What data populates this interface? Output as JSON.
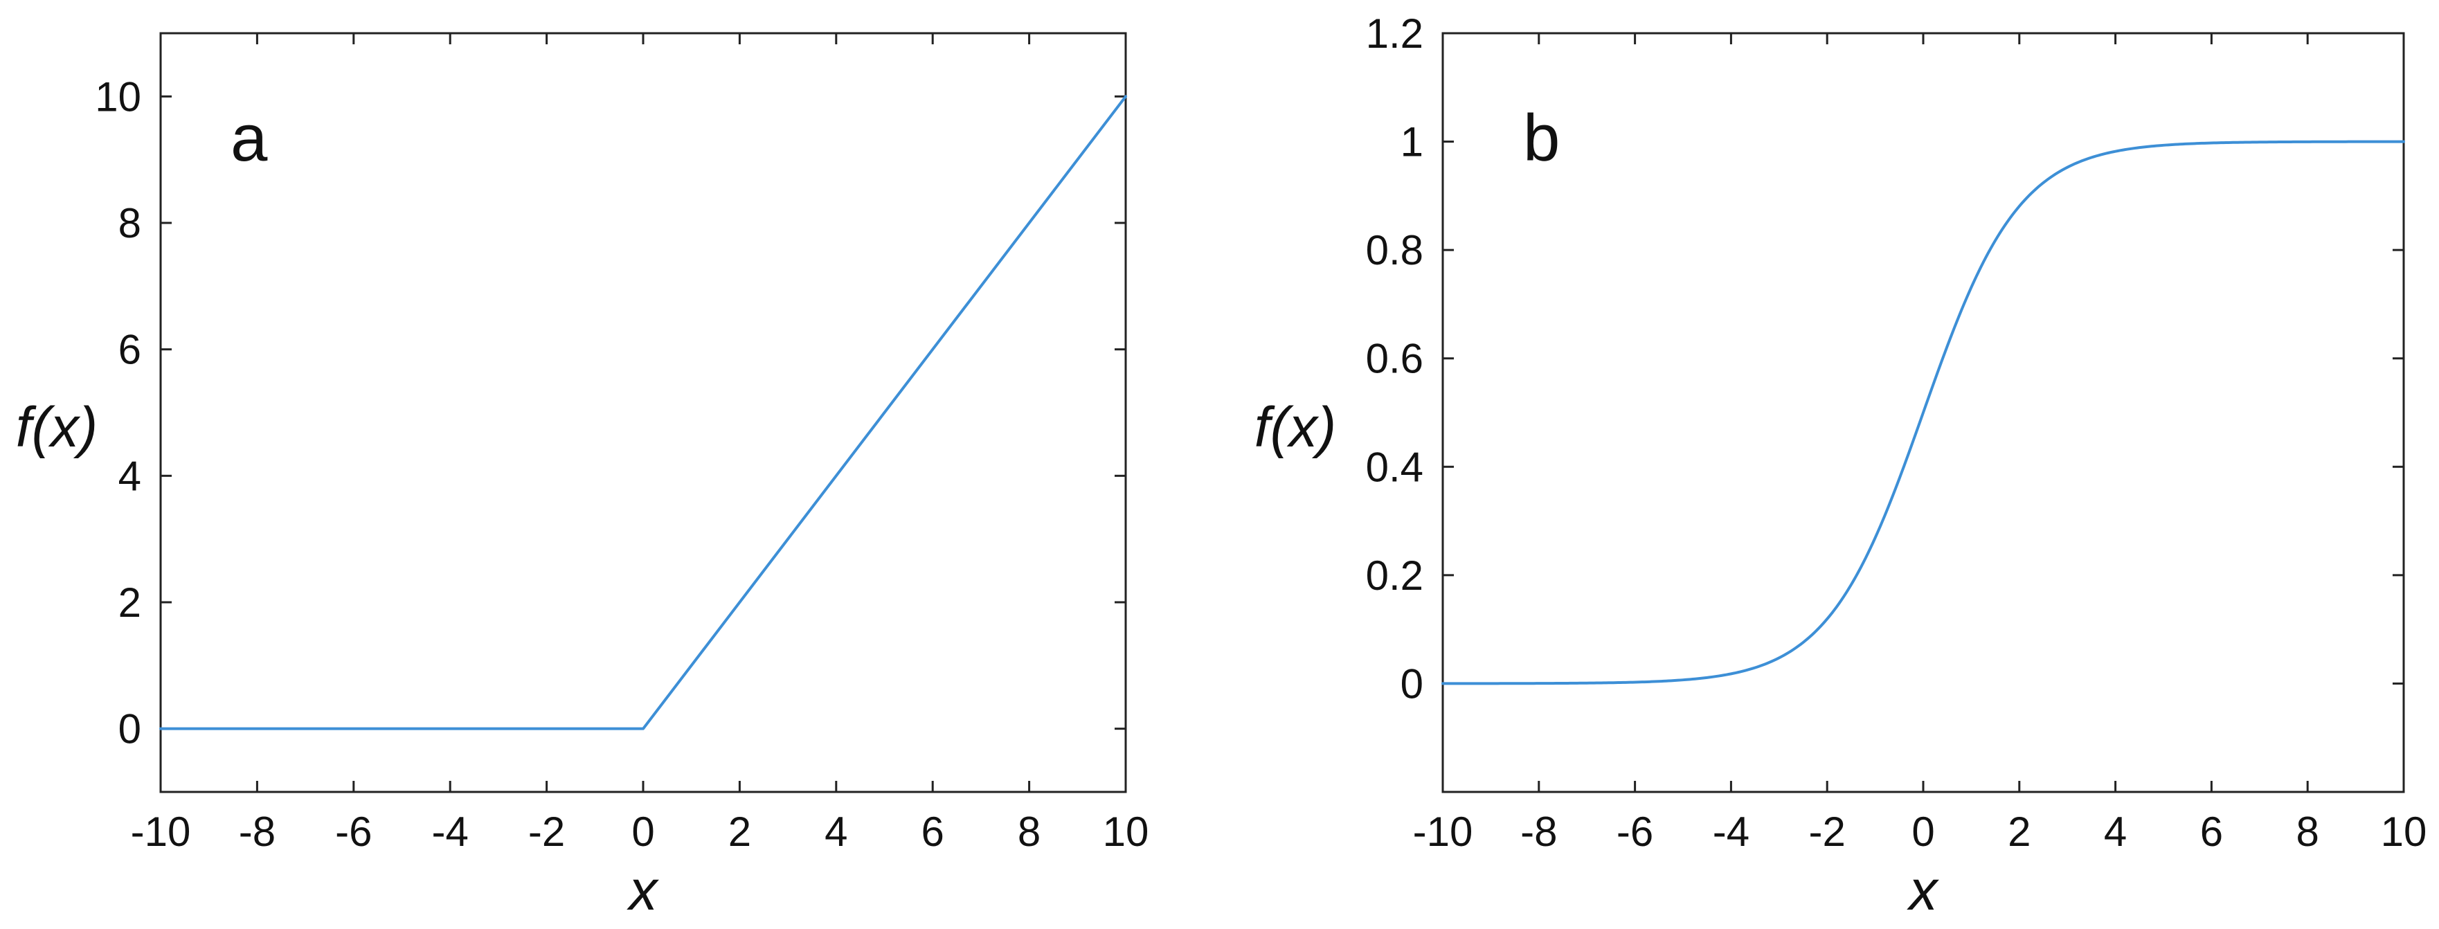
{
  "colors": {
    "line": "#3d8fd6",
    "axes": "#222222",
    "background": "#ffffff"
  },
  "chart_data": [
    {
      "type": "line",
      "function": "ReLU",
      "panel_label": "a",
      "xlabel": "x",
      "ylabel": "f(x)",
      "xlim": [
        -10,
        10
      ],
      "ylim": [
        -1,
        11
      ],
      "xticks": [
        -10,
        -8,
        -6,
        -4,
        -2,
        0,
        2,
        4,
        6,
        8,
        10
      ],
      "xtick_labels": [
        "-10",
        "-8",
        "-6",
        "-4",
        "-2",
        "0",
        "2",
        "4",
        "6",
        "8",
        "10"
      ],
      "yticks": [
        0,
        2,
        4,
        6,
        8,
        10
      ],
      "ytick_labels": [
        "0",
        "2",
        "4",
        "6",
        "8",
        "10"
      ],
      "grid": false,
      "series": [
        {
          "x": [
            -10,
            0,
            10
          ],
          "y": [
            0,
            0,
            10
          ]
        }
      ]
    },
    {
      "type": "line",
      "function": "sigmoid",
      "panel_label": "b",
      "xlabel": "x",
      "ylabel": "f(x)",
      "xlim": [
        -10,
        10
      ],
      "ylim": [
        -0.2,
        1.2
      ],
      "xticks": [
        -10,
        -8,
        -6,
        -4,
        -2,
        0,
        2,
        4,
        6,
        8,
        10
      ],
      "xtick_labels": [
        "-10",
        "-8",
        "-6",
        "-4",
        "-2",
        "0",
        "2",
        "4",
        "6",
        "8",
        "10"
      ],
      "yticks": [
        0,
        0.2,
        0.4,
        0.6,
        0.8,
        1,
        1.2
      ],
      "ytick_labels": [
        "0",
        "0.2",
        "0.4",
        "0.6",
        "0.8",
        "1",
        "1.2"
      ],
      "grid": false,
      "series": [
        {
          "x": [
            -10,
            -8,
            -6,
            -5,
            -4,
            -3,
            -2,
            -1.5,
            -1,
            -0.5,
            0,
            0.5,
            1,
            1.5,
            2,
            3,
            4,
            5,
            6,
            8,
            10
          ],
          "y": [
            4.54e-05,
            0.000335,
            0.00247,
            0.00669,
            0.018,
            0.0474,
            0.119,
            0.182,
            0.269,
            0.378,
            0.5,
            0.622,
            0.731,
            0.818,
            0.881,
            0.953,
            0.982,
            0.993,
            0.998,
            0.99966,
            0.99995
          ]
        }
      ]
    }
  ]
}
